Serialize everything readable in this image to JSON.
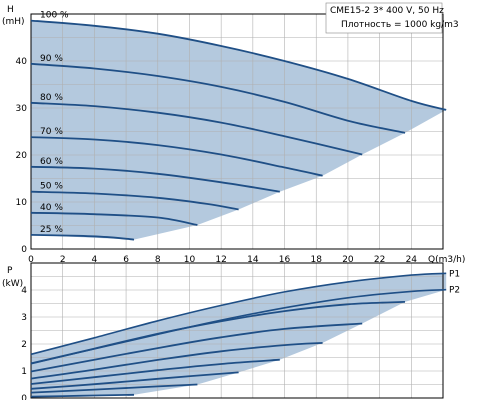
{
  "chart_data": [
    {
      "type": "line",
      "panel": "head",
      "ylabel": "H",
      "yunit": "(mH)",
      "xlabel": "Q(m3/h)",
      "xlim": [
        0,
        26
      ],
      "ylim": [
        0,
        50
      ],
      "x_ticks": [
        0,
        2,
        4,
        6,
        8,
        10,
        12,
        14,
        16,
        18,
        20,
        22,
        24
      ],
      "x_tick_labels": [
        "0",
        "2",
        "4",
        "6",
        "8",
        "10",
        "12",
        "14",
        "16",
        "18",
        "20",
        "22",
        "24"
      ],
      "y_ticks": [
        0,
        10,
        20,
        30,
        40
      ],
      "y_tick_labels": [
        "0",
        "10",
        "20",
        "30",
        "40"
      ],
      "grid": true,
      "info_lines": [
        "CME15-2    3* 400 V, 50 Hz",
        "Плотность = 1000 kg/m3"
      ],
      "series": [
        {
          "name": "100 %",
          "x": [
            0,
            4,
            8,
            12,
            16,
            20,
            24,
            26.2
          ],
          "y": [
            48.6,
            47.5,
            45.8,
            43.2,
            40.0,
            36.2,
            31.5,
            29.6
          ]
        },
        {
          "name": "90 %",
          "x": [
            0,
            4,
            8,
            12,
            16,
            20,
            23.6
          ],
          "y": [
            39.4,
            38.4,
            36.8,
            34.5,
            31.3,
            27.3,
            24.7
          ]
        },
        {
          "name": "80 %",
          "x": [
            0,
            4,
            8,
            12,
            16,
            20.9
          ],
          "y": [
            31.1,
            30.4,
            29.0,
            26.9,
            24.0,
            20.1
          ]
        },
        {
          "name": "70 %",
          "x": [
            0,
            4,
            8,
            12,
            15.8,
            18.4
          ],
          "y": [
            23.8,
            23.3,
            22.1,
            20.1,
            17.5,
            15.6
          ]
        },
        {
          "name": "60 %",
          "x": [
            0,
            4,
            8,
            12,
            15.7
          ],
          "y": [
            17.5,
            17.1,
            16.0,
            14.2,
            12.2
          ]
        },
        {
          "name": "50 %",
          "x": [
            0,
            4,
            8,
            11.1,
            13.1
          ],
          "y": [
            12.2,
            11.8,
            10.9,
            9.6,
            8.4
          ]
        },
        {
          "name": "40 %",
          "x": [
            0,
            4,
            8,
            10.5
          ],
          "y": [
            7.7,
            7.4,
            6.7,
            5.1
          ]
        },
        {
          "name": "25 %",
          "x": [
            0,
            3,
            5,
            6.5
          ],
          "y": [
            3.0,
            2.8,
            2.5,
            2.0
          ]
        }
      ],
      "envelope_lower": {
        "x": [
          6.5,
          10.5,
          13.1,
          15.7,
          18.4,
          20.9,
          23.6,
          26.2
        ],
        "y": [
          2.0,
          5.1,
          8.4,
          12.2,
          15.6,
          20.1,
          24.7,
          29.6
        ]
      }
    },
    {
      "type": "line",
      "panel": "power",
      "ylabel": "P",
      "yunit": "(kW)",
      "xlim": [
        0,
        26
      ],
      "ylim": [
        0,
        5
      ],
      "y_ticks": [
        0,
        1,
        2,
        3,
        4
      ],
      "y_tick_labels": [
        "0",
        "1",
        "2",
        "3",
        "4"
      ],
      "grid": true,
      "series": [
        {
          "name": "P1",
          "x": [
            0,
            4,
            8,
            12,
            16,
            20,
            24,
            26.2
          ],
          "y": [
            1.62,
            2.23,
            2.86,
            3.43,
            3.93,
            4.3,
            4.55,
            4.62
          ]
        },
        {
          "name": "P2",
          "x": [
            0,
            4,
            8,
            12,
            16,
            20,
            24,
            26.2
          ],
          "y": [
            1.27,
            1.82,
            2.36,
            2.88,
            3.34,
            3.71,
            3.95,
            4.01
          ]
        },
        {
          "name": "90 %",
          "x": [
            0,
            4,
            8,
            12,
            16,
            20,
            23.6
          ],
          "y": [
            1.28,
            1.83,
            2.38,
            2.84,
            3.22,
            3.47,
            3.56
          ]
        },
        {
          "name": "80 %",
          "x": [
            0,
            4,
            8,
            12,
            16,
            20.9
          ],
          "y": [
            0.98,
            1.42,
            1.85,
            2.25,
            2.56,
            2.76
          ]
        },
        {
          "name": "70 %",
          "x": [
            0,
            4,
            8,
            12,
            16,
            18.4
          ],
          "y": [
            0.72,
            1.05,
            1.41,
            1.73,
            1.96,
            2.04
          ]
        },
        {
          "name": "60 %",
          "x": [
            0,
            4,
            8,
            12,
            15.7
          ],
          "y": [
            0.52,
            0.77,
            1.03,
            1.26,
            1.42
          ]
        },
        {
          "name": "50 %",
          "x": [
            0,
            4,
            8,
            13.1
          ],
          "y": [
            0.34,
            0.51,
            0.71,
            0.95
          ]
        },
        {
          "name": "40 %",
          "x": [
            0,
            4,
            8,
            10.5
          ],
          "y": [
            0.2,
            0.31,
            0.43,
            0.5
          ]
        },
        {
          "name": "25 %",
          "x": [
            0,
            3,
            6.5
          ],
          "y": [
            0.05,
            0.08,
            0.12
          ]
        }
      ]
    }
  ],
  "colors": {
    "curve": "#1f4f86",
    "fill": "#b4c9de",
    "grid": "#b0b0b0",
    "axis": "#000000"
  }
}
